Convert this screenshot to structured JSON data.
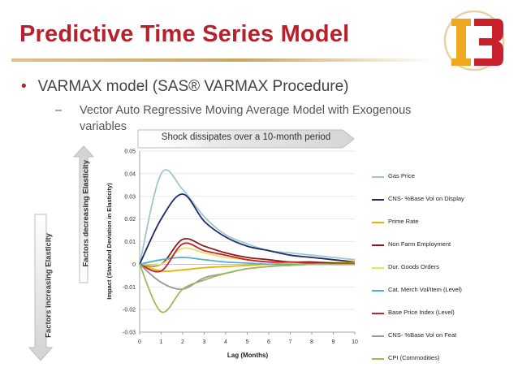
{
  "slide": {
    "title": "Predictive Time Series Model",
    "bullet_level1": "VARMAX model (SAS® VARMAX Procedure)",
    "bullet_level2": "Vector Auto Regressive Moving Average Model with Exogenous variables",
    "bullet_symbol": "•",
    "dash_symbol": "–",
    "banner": "Shock dissipates over a 10-month period",
    "left_label_decreasing": "Factors decreasing Elasticity",
    "left_label_increasing": "Factors increasing Elasticity"
  },
  "logo": {
    "icon": "i3-logo-icon",
    "colors": [
      "#f0a81e",
      "#c8202d",
      "#e7d3a6"
    ]
  },
  "colors": {
    "title": "#b7212c",
    "text": "#444444"
  },
  "chart_data": {
    "type": "line",
    "xlabel": "Lag (Months)",
    "ylabel": "Impact (Standard Deviation in Elasticity)",
    "xlim": [
      0,
      10
    ],
    "ylim": [
      -0.03,
      0.05
    ],
    "x_ticks": [
      0,
      1,
      2,
      3,
      4,
      5,
      6,
      7,
      8,
      9,
      10
    ],
    "y_ticks": [
      0.05,
      0.04,
      0.03,
      0.02,
      0.01,
      0,
      -0.01,
      -0.02,
      -0.03
    ],
    "y_tick_labels": [
      "0.05",
      "0.04",
      "0.03",
      "0.02",
      "0.01",
      "0",
      "-0.01",
      "-0.02",
      "-0.03"
    ],
    "grid": "horizontal",
    "legend_position": "right",
    "x": [
      0,
      1,
      2,
      3,
      4,
      5,
      6,
      7,
      8,
      9,
      10
    ],
    "series": [
      {
        "name": "Gas Price",
        "color": "#9fc7c9",
        "values": [
          0,
          0.04,
          0.033,
          0.021,
          0.013,
          0.009,
          0.006,
          0.005,
          0.004,
          0.003,
          0.002
        ]
      },
      {
        "name": "CNS- %Base Vol on Display",
        "color": "#1f2a6b",
        "values": [
          0,
          0.02,
          0.031,
          0.019,
          0.012,
          0.008,
          0.006,
          0.004,
          0.003,
          0.002,
          0.001
        ]
      },
      {
        "name": "Prime Rate",
        "color": "#e6b400",
        "values": [
          0,
          -0.003,
          -0.0025,
          -0.0015,
          -0.001,
          -0.0005,
          0,
          0.0003,
          0.0005,
          0.0007,
          0.0008
        ]
      },
      {
        "name": "Non Farm Employment",
        "color": "#8b1a1a",
        "values": [
          0,
          0,
          0.011,
          0.008,
          0.005,
          0.003,
          0.002,
          0.001,
          0.001,
          0.0005,
          0.0003
        ]
      },
      {
        "name": "Dur. Goods Orders",
        "color": "#e8e060",
        "values": [
          0,
          0,
          0.007,
          0.005,
          0.003,
          0.002,
          0.001,
          0.0005,
          0,
          0,
          0
        ]
      },
      {
        "name": "Cat. Merch Vol/Item (Level)",
        "color": "#4fb1cf",
        "values": [
          0,
          0.002,
          0.003,
          0.002,
          0.001,
          0.0005,
          0,
          0,
          0,
          0,
          0
        ]
      },
      {
        "name": "Base Price Index (Level)",
        "color": "#c8202d",
        "values": [
          0,
          -0.003,
          0.009,
          0.006,
          0.004,
          0.002,
          0.001,
          0.001,
          0.0005,
          0,
          0
        ]
      },
      {
        "name": "CNS- %Base Vol on Feat",
        "color": "#9a9a9a",
        "values": [
          0,
          -0.008,
          -0.011,
          -0.006,
          -0.004,
          -0.002,
          -0.001,
          -0.0005,
          0,
          0,
          0
        ]
      },
      {
        "name": "CPI (Commodities)",
        "color": "#9bbb59",
        "values": [
          0,
          -0.021,
          -0.011,
          -0.007,
          -0.004,
          -0.002,
          -0.001,
          -0.0005,
          0,
          0,
          0
        ]
      }
    ]
  }
}
